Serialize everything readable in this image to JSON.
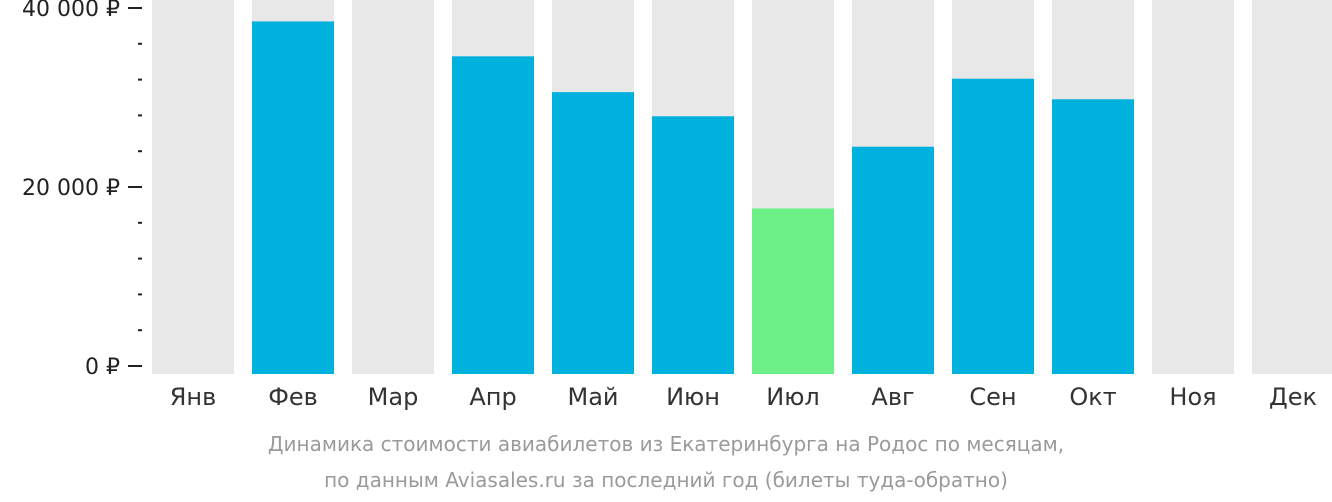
{
  "chart_data": {
    "type": "bar",
    "categories": [
      "Янв",
      "Фев",
      "Мар",
      "Апр",
      "Май",
      "Июн",
      "Июл",
      "Авг",
      "Сен",
      "Окт",
      "Ноя",
      "Дек"
    ],
    "values": [
      null,
      38500,
      null,
      34600,
      30600,
      27900,
      17600,
      24500,
      32100,
      29800,
      null,
      null
    ],
    "highlight_index": 6,
    "ylim": [
      0,
      41000
    ],
    "y_ticks": [
      {
        "value": 0,
        "label": "0 ₽"
      },
      {
        "value": 20000,
        "label": "20 000 ₽"
      },
      {
        "value": 40000,
        "label": "40 000 ₽"
      }
    ],
    "y_minor_step": 4000,
    "title": "",
    "xlabel": "",
    "ylabel": "",
    "grid": false,
    "legend": "none"
  },
  "caption": {
    "line1": "Динамика стоимости авиабилетов из Екатеринбурга на Родос по месяцам,",
    "line2": "по данным Aviasales.ru за последний год (билеты туда-обратно)"
  },
  "colors": {
    "bar": "#00b0dd",
    "bar_highlight": "#6cef86",
    "background_column": "#e8e8e8",
    "axis": "#222222",
    "caption": "#9a9a9a"
  }
}
